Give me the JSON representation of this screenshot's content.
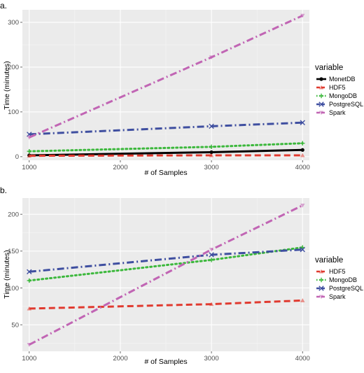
{
  "chart_data": [
    {
      "type": "line",
      "panel_label": "a.",
      "xlabel": "# of Samples",
      "ylabel": "Time (minutes)",
      "x": [
        1000,
        3000,
        4000
      ],
      "xticks": [
        1000,
        2000,
        3000,
        4000
      ],
      "yticks": [
        0,
        100,
        200,
        300
      ],
      "xlim": [
        925,
        4075
      ],
      "ylim": [
        -8,
        328
      ],
      "grid": true,
      "legend_title": "variable",
      "legend_position": "right",
      "series": [
        {
          "name": "MonetDB",
          "values": [
            3,
            10,
            15
          ],
          "color": "#000000",
          "style": "solid",
          "marker": "circle"
        },
        {
          "name": "HDF5",
          "values": [
            2,
            3,
            3
          ],
          "color": "#e03a2f",
          "style": "dashed",
          "marker": "triangle"
        },
        {
          "name": "MongoDB",
          "values": [
            12,
            22,
            30
          ],
          "color": "#3cb83c",
          "style": "dotted",
          "marker": "plus"
        },
        {
          "name": "PostgreSQL",
          "values": [
            50,
            68,
            76
          ],
          "color": "#3f4fa0",
          "style": "dashdot",
          "marker": "cross"
        },
        {
          "name": "Spark",
          "values": [
            43,
            222,
            315
          ],
          "color": "#c165b4",
          "style": "dashdot",
          "marker": "triangle-down"
        }
      ]
    },
    {
      "type": "line",
      "panel_label": "b.",
      "xlabel": "# of Samples",
      "ylabel": "Time (minutes)",
      "x": [
        1000,
        3000,
        4000
      ],
      "xticks": [
        1000,
        2000,
        3000,
        4000
      ],
      "yticks": [
        50,
        100,
        150,
        200
      ],
      "xlim": [
        925,
        4075
      ],
      "ylim": [
        14,
        222
      ],
      "grid": true,
      "legend_title": "variable",
      "legend_position": "right",
      "series": [
        {
          "name": "HDF5",
          "values": [
            72,
            78,
            83
          ],
          "color": "#e03a2f",
          "style": "dashed",
          "marker": "triangle"
        },
        {
          "name": "MongoDB",
          "values": [
            110,
            138,
            155
          ],
          "color": "#3cb83c",
          "style": "dotted",
          "marker": "plus"
        },
        {
          "name": "PostgreSQL",
          "values": [
            122,
            145,
            152
          ],
          "color": "#3f4fa0",
          "style": "dashdot",
          "marker": "cross"
        },
        {
          "name": "Spark",
          "values": [
            23,
            152,
            212
          ],
          "color": "#c165b4",
          "style": "dashdot",
          "marker": "triangle-down"
        }
      ]
    }
  ]
}
